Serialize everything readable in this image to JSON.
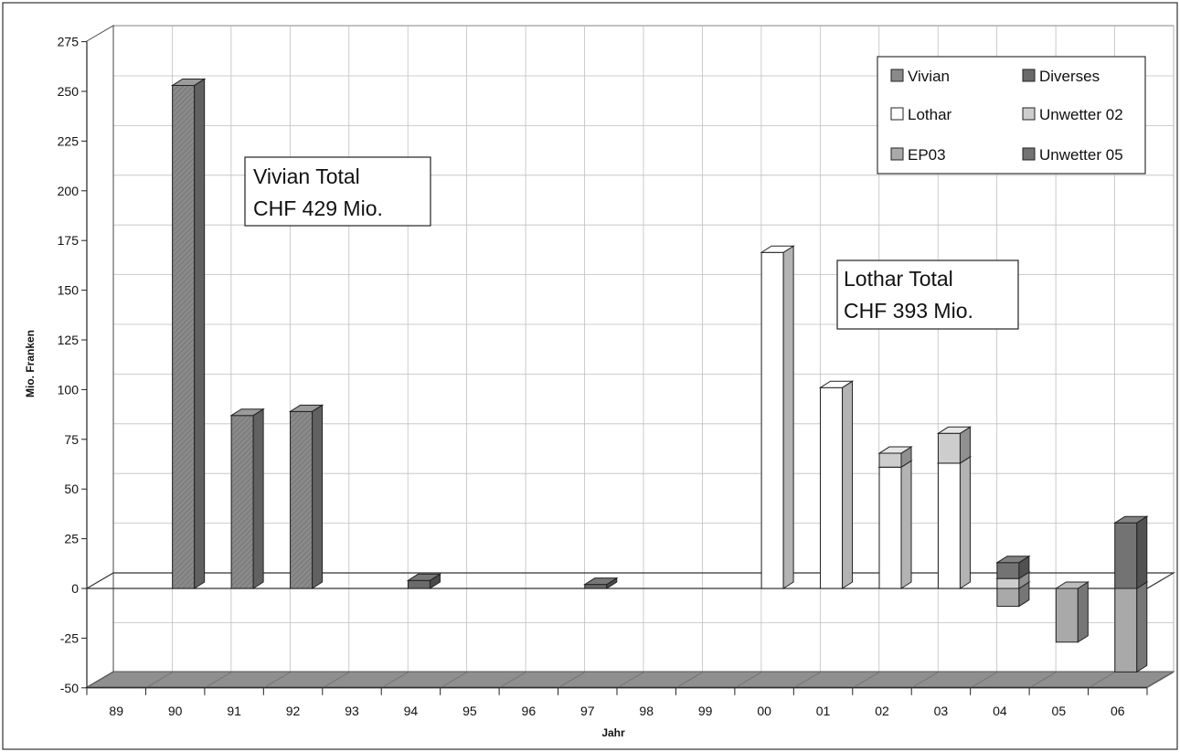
{
  "chart_data": {
    "type": "bar",
    "stacked": true,
    "three_d": true,
    "xlabel": "Jahr",
    "ylabel": "Mio. Franken",
    "ylim": [
      -50,
      275
    ],
    "yticks": [
      275,
      250,
      225,
      200,
      175,
      150,
      125,
      100,
      75,
      50,
      25,
      0,
      -25,
      -50
    ],
    "categories": [
      "89",
      "90",
      "91",
      "92",
      "93",
      "94",
      "95",
      "96",
      "97",
      "98",
      "99",
      "00",
      "01",
      "02",
      "03",
      "04",
      "05",
      "06"
    ],
    "grid": true,
    "legend_position": "top-right",
    "series": [
      {
        "name": "Vivian",
        "color": "#8a8a8a",
        "pattern": "hatched",
        "values": [
          0,
          253,
          87,
          89,
          0,
          0,
          0,
          0,
          0,
          0,
          0,
          0,
          0,
          0,
          0,
          0,
          0,
          0
        ]
      },
      {
        "name": "Lothar",
        "color": "#ffffff",
        "values": [
          0,
          0,
          0,
          0,
          0,
          0,
          0,
          0,
          0,
          0,
          0,
          169,
          101,
          61,
          63,
          0,
          0,
          0
        ]
      },
      {
        "name": "EP03",
        "color": "#a9a9a9",
        "values": [
          0,
          0,
          0,
          0,
          0,
          0,
          0,
          0,
          0,
          0,
          0,
          0,
          0,
          0,
          0,
          -9,
          -27,
          -42
        ]
      },
      {
        "name": "Diverses",
        "color": "#6a6a6a",
        "values": [
          0,
          0,
          0,
          0,
          0,
          4,
          0,
          0,
          2,
          0,
          0,
          0,
          0,
          0,
          0,
          0,
          0,
          0
        ]
      },
      {
        "name": "Unwetter 02",
        "color": "#cdcdcd",
        "values": [
          0,
          0,
          0,
          0,
          0,
          0,
          0,
          0,
          0,
          0,
          0,
          0,
          0,
          7,
          15,
          5,
          0,
          0
        ]
      },
      {
        "name": "Unwetter 05",
        "color": "#737373",
        "values": [
          0,
          0,
          0,
          0,
          0,
          0,
          0,
          0,
          0,
          0,
          0,
          0,
          0,
          0,
          0,
          8,
          0,
          33
        ]
      }
    ],
    "annotations": [
      {
        "line1": "Vivian Total",
        "line2": "CHF 429 Mio."
      },
      {
        "line1": "Lothar Total",
        "line2": "CHF 393 Mio."
      }
    ]
  }
}
